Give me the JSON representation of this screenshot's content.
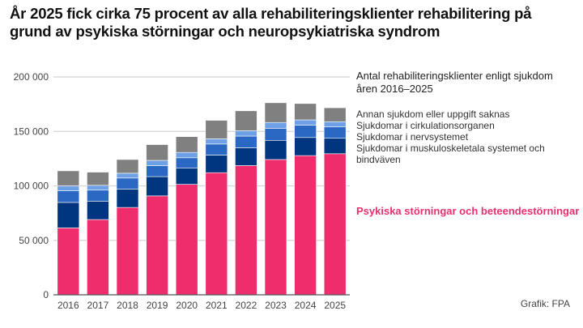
{
  "chart_data": {
    "type": "bar",
    "stacked": true,
    "title": "År 2025 fick cirka 75 procent av alla rehabiliteringsklienter rehabilitering på grund av psykiska störningar och neuropsykiatriska syndrom",
    "subtitle": "Antal rehabiliteringsklienter enligt sjukdom åren 2016–2025",
    "xlabel": "",
    "ylabel": "",
    "ylim": [
      0,
      200000
    ],
    "yticks": [
      0,
      50000,
      100000,
      150000,
      200000
    ],
    "ytick_labels": [
      "0",
      "50 000",
      "100 000",
      "150 000",
      "200 000"
    ],
    "grid": true,
    "legend_position": "right",
    "categories": [
      "2016",
      "2017",
      "2018",
      "2019",
      "2020",
      "2021",
      "2022",
      "2023",
      "2024",
      "2025"
    ],
    "series": [
      {
        "name": "Psykiska störningar och beteendestörningar",
        "color": "#ef2d6c",
        "values": [
          61400,
          69100,
          80200,
          90800,
          101400,
          112100,
          118600,
          124200,
          127800,
          129500
        ]
      },
      {
        "name": "Sjukdomar i muskuloskeletala systemet och bindväven",
        "color": "#003580",
        "values": [
          23400,
          16900,
          16700,
          17700,
          14800,
          16200,
          16400,
          17600,
          16600,
          14200
        ]
      },
      {
        "name": "Sjukdomar i nervsystemet",
        "color": "#2b68c4",
        "values": [
          10600,
          10100,
          10300,
          10100,
          9600,
          10100,
          10700,
          11100,
          11400,
          10400
        ]
      },
      {
        "name": "Sjukdomar i cirkulationsorganen",
        "color": "#6ea0e6",
        "values": [
          4600,
          4400,
          4400,
          4800,
          4900,
          4800,
          5000,
          5300,
          4800,
          4800
        ]
      },
      {
        "name": "Annan sjukdom eller uppgift saknas",
        "color": "#808080",
        "values": [
          13800,
          12100,
          12600,
          14500,
          14500,
          17000,
          18200,
          18100,
          15000,
          12800
        ]
      }
    ],
    "credit": "Grafik: FPA"
  }
}
